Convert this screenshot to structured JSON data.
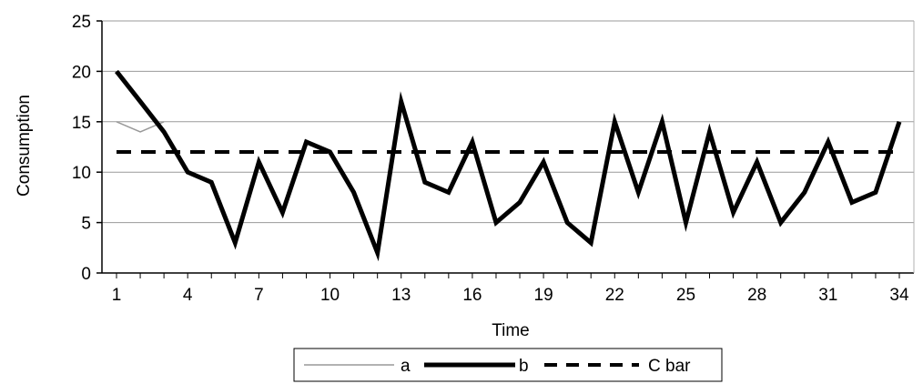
{
  "chart_data": {
    "type": "line",
    "xlabel": "Time",
    "ylabel": "Consumption",
    "xlim": [
      1,
      34
    ],
    "ylim": [
      0,
      25
    ],
    "y_ticks": [
      0,
      5,
      10,
      15,
      20,
      25
    ],
    "x_ticks": [
      1,
      4,
      7,
      10,
      13,
      16,
      19,
      22,
      25,
      28,
      31,
      34
    ],
    "grid": "horizontal",
    "legend_position": "bottom",
    "x": [
      1,
      2,
      3,
      4,
      5,
      6,
      7,
      8,
      9,
      10,
      11,
      12,
      13,
      14,
      15,
      16,
      17,
      18,
      19,
      20,
      21,
      22,
      23,
      24,
      25,
      26,
      27,
      28,
      29,
      30,
      31,
      32,
      33,
      34
    ],
    "series": [
      {
        "name": "a",
        "style": "thin-gray",
        "color": "#999999",
        "x": [
          1,
          2,
          3
        ],
        "values": [
          15,
          14,
          15
        ]
      },
      {
        "name": "b",
        "style": "thick-black",
        "color": "#000000",
        "values": [
          20,
          17,
          14,
          10,
          9,
          3,
          11,
          6,
          13,
          12,
          8,
          2,
          17,
          9,
          8,
          13,
          5,
          7,
          11,
          5,
          3,
          15,
          8,
          15,
          5,
          14,
          6,
          11,
          5,
          8,
          13,
          7,
          8,
          15
        ]
      },
      {
        "name": "C bar",
        "style": "dashed-black",
        "color": "#000000",
        "values": [
          12,
          12,
          12,
          12,
          12,
          12,
          12,
          12,
          12,
          12,
          12,
          12,
          12,
          12,
          12,
          12,
          12,
          12,
          12,
          12,
          12,
          12,
          12,
          12,
          12,
          12,
          12,
          12,
          12,
          12,
          12,
          12,
          12,
          12
        ]
      }
    ]
  }
}
